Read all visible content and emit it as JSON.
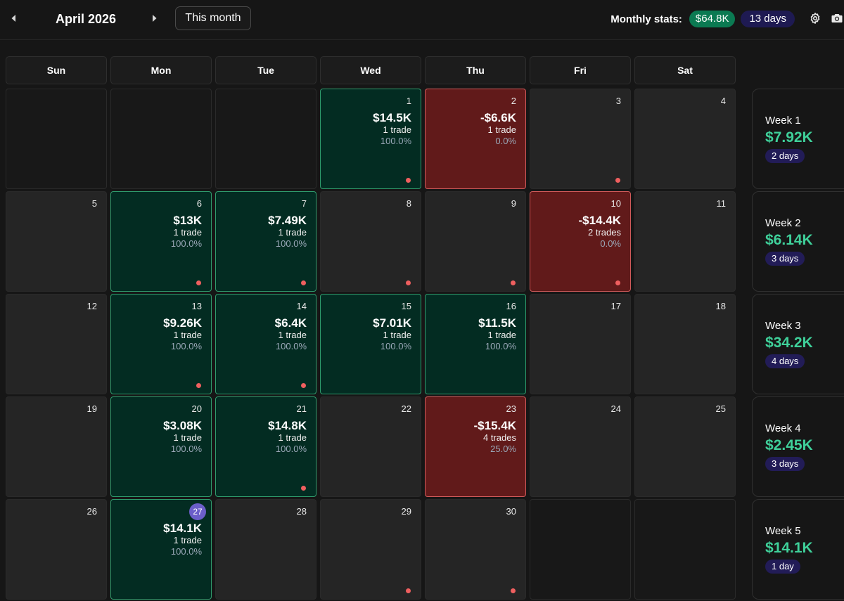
{
  "header": {
    "month_title": "April 2026",
    "this_month_label": "This month",
    "stats_label": "Monthly stats:",
    "stats_profit": "$64.8K",
    "stats_days": "13 days"
  },
  "icons": {
    "prev": "caret-left-icon",
    "next": "caret-right-icon",
    "settings": "gear-icon",
    "screenshot": "camera-icon"
  },
  "colors": {
    "profit_bg": "#032c22",
    "loss_bg": "#611a1a",
    "profit_text": "#3fd09a",
    "today_badge": "#6b5ec9"
  },
  "weekdays": [
    "Sun",
    "Mon",
    "Tue",
    "Wed",
    "Thu",
    "Fri",
    "Sat"
  ],
  "weeks": [
    {
      "label": "Week 1",
      "pnl": "$7.92K",
      "days": "2 days",
      "cells": [
        {
          "type": "empty"
        },
        {
          "type": "empty"
        },
        {
          "type": "empty"
        },
        {
          "type": "profit",
          "day": "1",
          "pnl": "$14.5K",
          "trades": "1 trade",
          "winrate": "100.0%",
          "dot": true
        },
        {
          "type": "loss",
          "day": "2",
          "pnl": "-$6.6K",
          "trades": "1 trade",
          "winrate": "0.0%"
        },
        {
          "type": "normal",
          "day": "3",
          "dot": true
        },
        {
          "type": "normal",
          "day": "4"
        }
      ]
    },
    {
      "label": "Week 2",
      "pnl": "$6.14K",
      "days": "3 days",
      "cells": [
        {
          "type": "normal",
          "day": "5"
        },
        {
          "type": "profit",
          "day": "6",
          "pnl": "$13K",
          "trades": "1 trade",
          "winrate": "100.0%",
          "dot": true
        },
        {
          "type": "profit",
          "day": "7",
          "pnl": "$7.49K",
          "trades": "1 trade",
          "winrate": "100.0%",
          "dot": true
        },
        {
          "type": "normal",
          "day": "8",
          "dot": true
        },
        {
          "type": "normal",
          "day": "9",
          "dot": true
        },
        {
          "type": "loss",
          "day": "10",
          "pnl": "-$14.4K",
          "trades": "2 trades",
          "winrate": "0.0%",
          "dot": true
        },
        {
          "type": "normal",
          "day": "11"
        }
      ]
    },
    {
      "label": "Week 3",
      "pnl": "$34.2K",
      "days": "4 days",
      "cells": [
        {
          "type": "normal",
          "day": "12"
        },
        {
          "type": "profit",
          "day": "13",
          "pnl": "$9.26K",
          "trades": "1 trade",
          "winrate": "100.0%",
          "dot": true
        },
        {
          "type": "profit",
          "day": "14",
          "pnl": "$6.4K",
          "trades": "1 trade",
          "winrate": "100.0%",
          "dot": true
        },
        {
          "type": "profit",
          "day": "15",
          "pnl": "$7.01K",
          "trades": "1 trade",
          "winrate": "100.0%"
        },
        {
          "type": "profit",
          "day": "16",
          "pnl": "$11.5K",
          "trades": "1 trade",
          "winrate": "100.0%"
        },
        {
          "type": "normal",
          "day": "17"
        },
        {
          "type": "normal",
          "day": "18"
        }
      ]
    },
    {
      "label": "Week 4",
      "pnl": "$2.45K",
      "days": "3 days",
      "cells": [
        {
          "type": "normal",
          "day": "19"
        },
        {
          "type": "profit",
          "day": "20",
          "pnl": "$3.08K",
          "trades": "1 trade",
          "winrate": "100.0%"
        },
        {
          "type": "profit",
          "day": "21",
          "pnl": "$14.8K",
          "trades": "1 trade",
          "winrate": "100.0%",
          "dot": true
        },
        {
          "type": "normal",
          "day": "22"
        },
        {
          "type": "loss",
          "day": "23",
          "pnl": "-$15.4K",
          "trades": "4 trades",
          "winrate": "25.0%"
        },
        {
          "type": "normal",
          "day": "24"
        },
        {
          "type": "normal",
          "day": "25"
        }
      ]
    },
    {
      "label": "Week 5",
      "pnl": "$14.1K",
      "days": "1 day",
      "cells": [
        {
          "type": "normal",
          "day": "26"
        },
        {
          "type": "profit",
          "day": "27",
          "today": true,
          "pnl": "$14.1K",
          "trades": "1 trade",
          "winrate": "100.0%"
        },
        {
          "type": "normal",
          "day": "28"
        },
        {
          "type": "normal",
          "day": "29",
          "dot": true
        },
        {
          "type": "normal",
          "day": "30",
          "dot": true
        },
        {
          "type": "empty"
        },
        {
          "type": "empty"
        }
      ]
    }
  ]
}
